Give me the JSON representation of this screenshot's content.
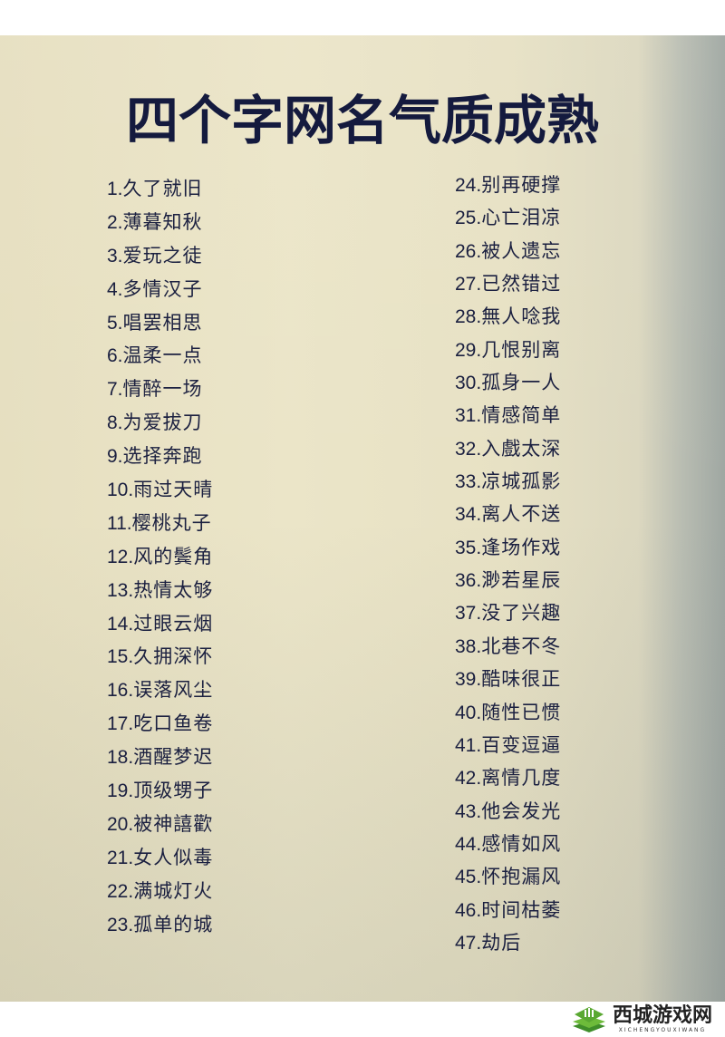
{
  "title": "四个字网名气质成熟",
  "left_items": [
    {
      "num": "1.",
      "name": "久了就旧"
    },
    {
      "num": "2.",
      "name": "薄暮知秋"
    },
    {
      "num": "3.",
      "name": "爱玩之徒"
    },
    {
      "num": "4.",
      "name": "多情汉子"
    },
    {
      "num": "5.",
      "name": "唱罢相思"
    },
    {
      "num": "6.",
      "name": "温柔一点"
    },
    {
      "num": "7.",
      "name": "情醉一场"
    },
    {
      "num": "8.",
      "name": "为爱拔刀"
    },
    {
      "num": "9.",
      "name": "选择奔跑"
    },
    {
      "num": "10.",
      "name": "雨过天晴"
    },
    {
      "num": "11.",
      "name": "樱桃丸子"
    },
    {
      "num": "12.",
      "name": "风的鬓角"
    },
    {
      "num": "13.",
      "name": "热情太够"
    },
    {
      "num": "14.",
      "name": "过眼云烟"
    },
    {
      "num": "15.",
      "name": "久拥深怀"
    },
    {
      "num": "16.",
      "name": "误落风尘"
    },
    {
      "num": "17.",
      "name": "吃口鱼卷"
    },
    {
      "num": "18.",
      "name": "酒醒梦迟"
    },
    {
      "num": "19.",
      "name": "顶级甥子"
    },
    {
      "num": "20.",
      "name": "被神譆歡"
    },
    {
      "num": "21.",
      "name": "女人似毒"
    },
    {
      "num": "22.",
      "name": "满城灯火"
    },
    {
      "num": "23.",
      "name": "孤单的城"
    }
  ],
  "right_items": [
    {
      "num": "24.",
      "name": "别再硬撑"
    },
    {
      "num": "25.",
      "name": "心亡泪凉"
    },
    {
      "num": "26.",
      "name": "被人遗忘"
    },
    {
      "num": "27.",
      "name": "已然错过"
    },
    {
      "num": "28.",
      "name": "無人唸我"
    },
    {
      "num": "29.",
      "name": "几恨别离"
    },
    {
      "num": "30.",
      "name": "孤身一人"
    },
    {
      "num": "31.",
      "name": "情感简单"
    },
    {
      "num": "32.",
      "name": "入戲太深"
    },
    {
      "num": "33.",
      "name": "凉城孤影"
    },
    {
      "num": "34.",
      "name": "离人不送"
    },
    {
      "num": "35.",
      "name": "逢场作戏"
    },
    {
      "num": "36.",
      "name": "渺若星辰"
    },
    {
      "num": "37.",
      "name": "没了兴趣"
    },
    {
      "num": "38.",
      "name": "北巷不冬"
    },
    {
      "num": "39.",
      "name": "酷味很正"
    },
    {
      "num": "40.",
      "name": "随性已惯"
    },
    {
      "num": "41.",
      "name": "百变逗逼"
    },
    {
      "num": "42.",
      "name": "离情几度"
    },
    {
      "num": "43.",
      "name": "他会发光"
    },
    {
      "num": "44.",
      "name": "感情如风"
    },
    {
      "num": "45.",
      "name": "怀抱漏风"
    },
    {
      "num": "46.",
      "name": "时间枯萎"
    },
    {
      "num": "47.",
      "name": "劫后"
    }
  ],
  "watermark": {
    "name": "西城游戏网",
    "pinyin": "XICHENGYOUXIWANG",
    "icon": "green-layered-diamond-logo",
    "color": "#5aa832"
  }
}
